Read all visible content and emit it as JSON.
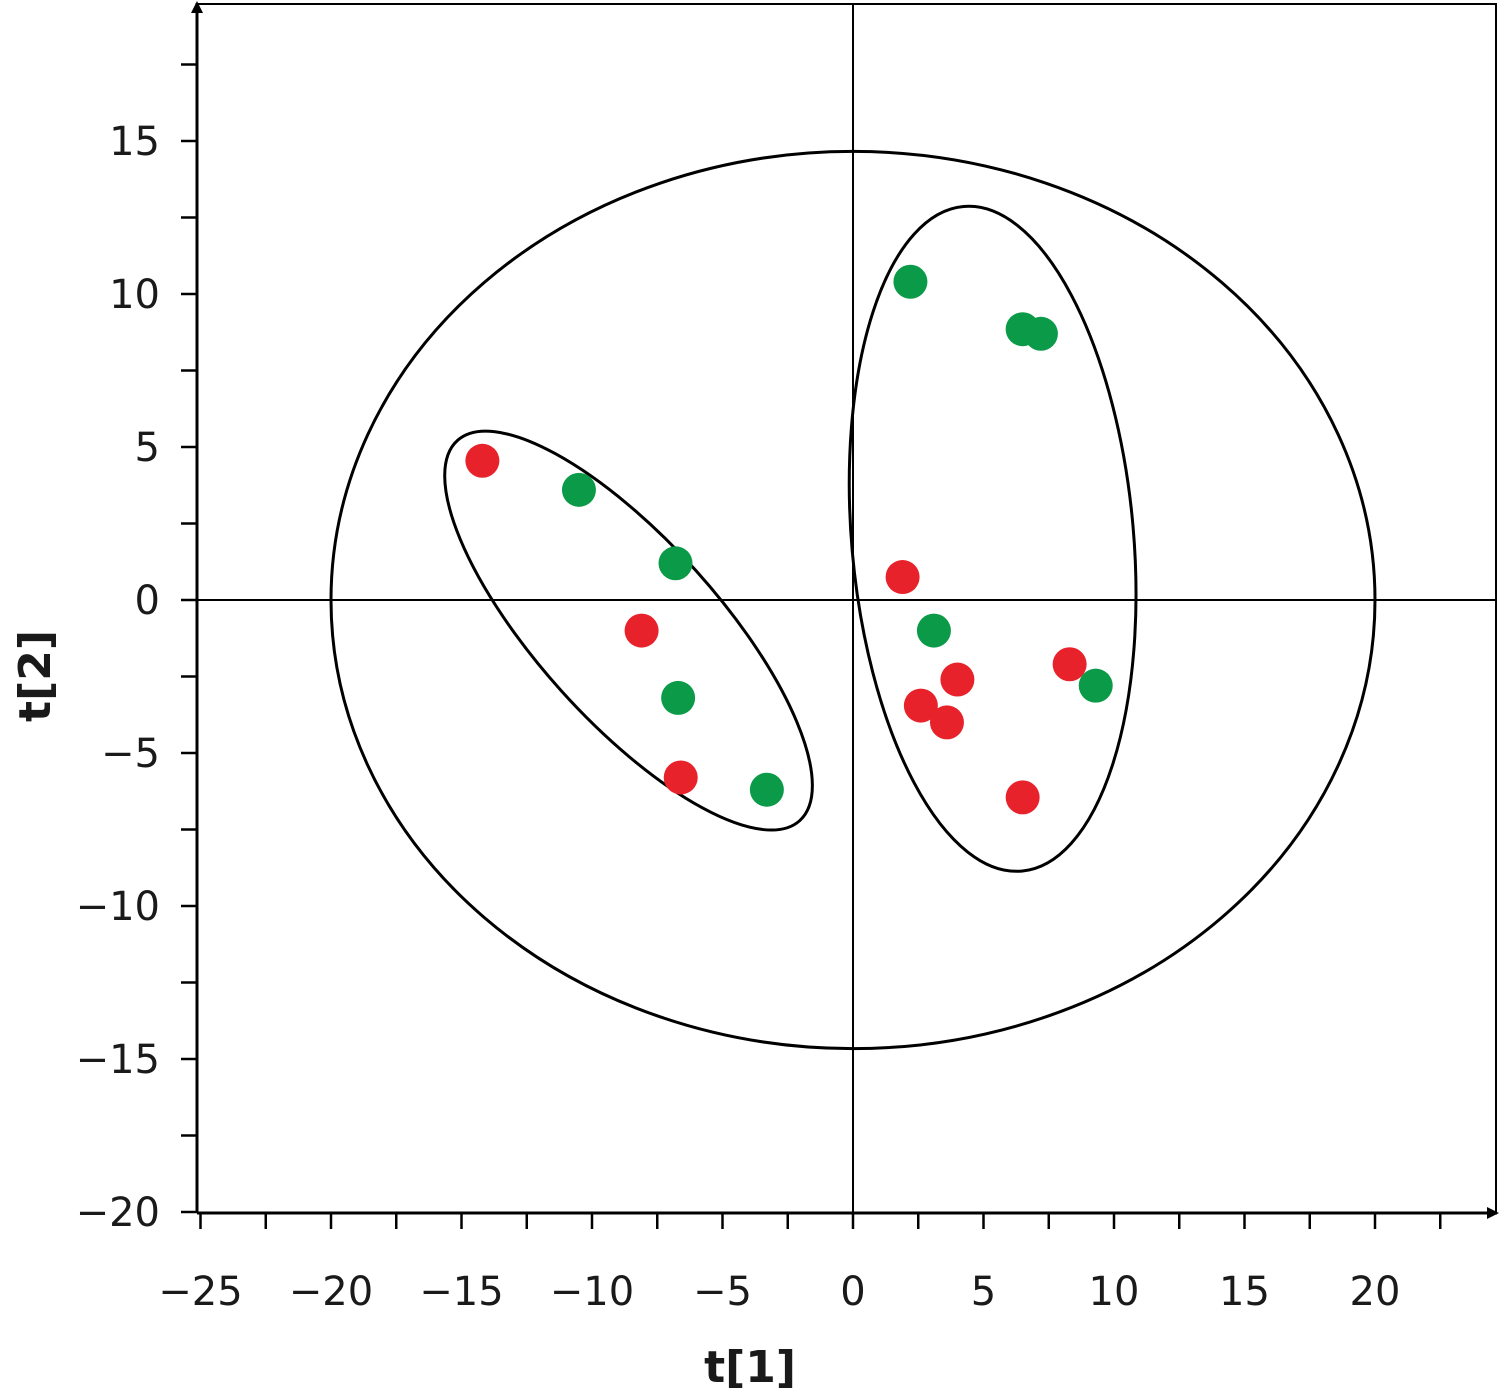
{
  "chart_data": {
    "type": "scatter",
    "title": "",
    "xlabel": "t[1]",
    "ylabel": "t[2]",
    "xlim": [
      -25,
      24
    ],
    "ylim": [
      -20,
      19
    ],
    "x_ticks": [
      "−25",
      "−20",
      "−15",
      "−10",
      "−5",
      "0",
      "5",
      "10",
      "15",
      "20"
    ],
    "x_tick_values": [
      -25,
      -20,
      -15,
      -10,
      -5,
      0,
      5,
      10,
      15,
      20
    ],
    "y_ticks": [
      "−20",
      "−15",
      "−10",
      "−5",
      "0",
      "5",
      "10",
      "15"
    ],
    "y_tick_values": [
      -20,
      -15,
      -10,
      -5,
      0,
      5,
      10,
      15
    ],
    "grid": false,
    "series": [
      {
        "name": "red group",
        "color": "#e8222a",
        "points": [
          [
            -14.2,
            4.55
          ],
          [
            -8.1,
            -1.0
          ],
          [
            -6.6,
            -5.8
          ],
          [
            1.9,
            0.75
          ],
          [
            2.6,
            -3.45
          ],
          [
            3.6,
            -4.0
          ],
          [
            4.0,
            -2.6
          ],
          [
            8.3,
            -2.1
          ],
          [
            6.5,
            -6.45
          ]
        ]
      },
      {
        "name": "green group",
        "color": "#0a9a48",
        "points": [
          [
            -10.5,
            3.6
          ],
          [
            -6.8,
            1.2
          ],
          [
            -6.7,
            -3.2
          ],
          [
            -3.3,
            -6.2
          ],
          [
            2.2,
            10.4
          ],
          [
            6.5,
            8.85
          ],
          [
            7.2,
            8.7
          ],
          [
            3.1,
            -1.0
          ],
          [
            9.3,
            -2.8
          ]
        ]
      }
    ],
    "ellipses": [
      {
        "name": "hotelling-t2-ellipse",
        "center": [
          0,
          0
        ],
        "rx": 20,
        "ry": 14.66,
        "angle_deg": 0
      },
      {
        "name": "left-cluster-ellipse",
        "center": [
          -8.6,
          -1.0
        ],
        "rx": 9.8,
        "ry": 2.95,
        "angle_deg": 48
      },
      {
        "name": "right-cluster-ellipse",
        "center": [
          5.35,
          2.0
        ],
        "rx": 5.4,
        "ry": 10.9,
        "angle_deg": -5
      }
    ]
  }
}
